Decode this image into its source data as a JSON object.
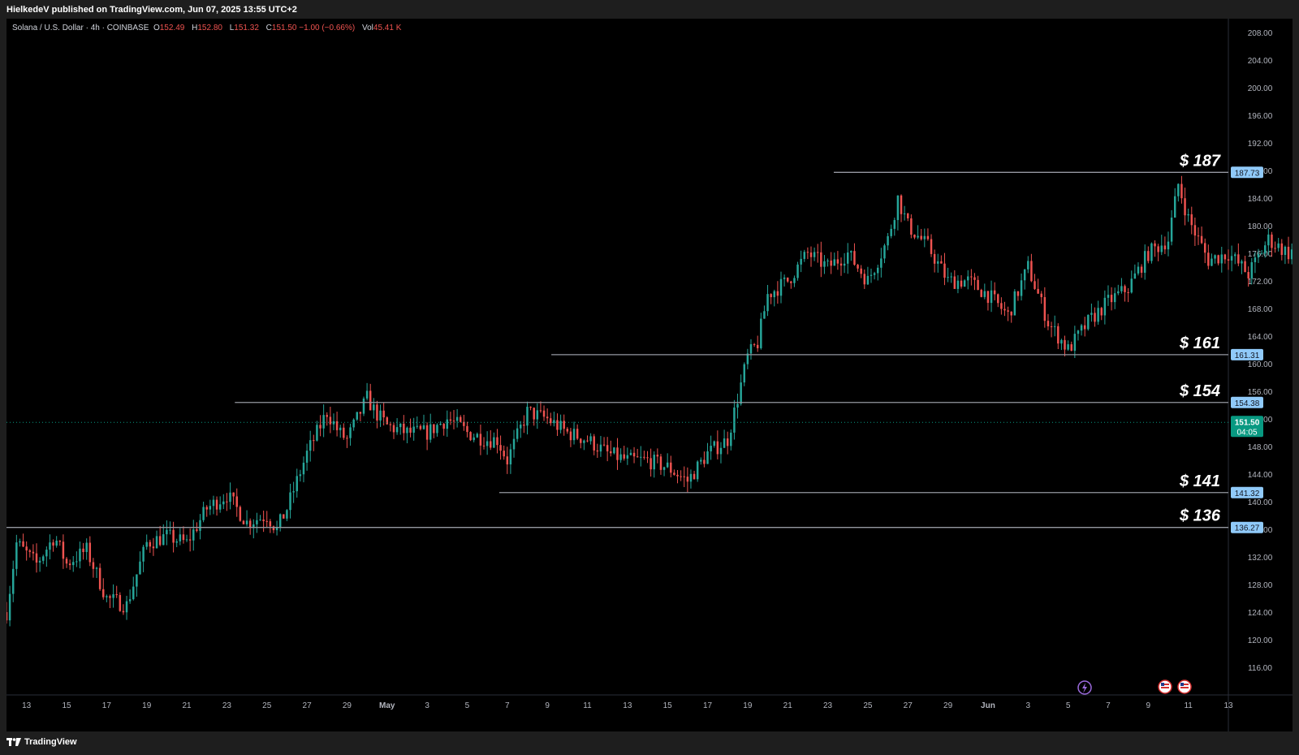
{
  "publisher_line": "HielkedeV published on TradingView.com, Jun 07, 2025 13:55 UTC+2",
  "legend": {
    "symbol": "Solana / U.S. Dollar · 4h · COINBASE",
    "o_label": "O",
    "o_value": "152.49",
    "h_label": "H",
    "h_value": "152.80",
    "l_label": "L",
    "l_value": "151.32",
    "c_label": "C",
    "c_value": "151.50 −1.00 (−0.66%)",
    "vol_label": "Vol",
    "vol_value": "45.41 K"
  },
  "footer": {
    "brand": "TradingView"
  },
  "colors": {
    "up": "#26a69a",
    "down": "#ef5350",
    "level_line": "#9598a1",
    "level_tag": "#90caf9",
    "price_tag": "#089981"
  },
  "chart_data": {
    "type": "line",
    "title": "",
    "ylim": [
      112,
      210
    ],
    "y_ticks": [
      "116.00",
      "120.00",
      "124.00",
      "128.00",
      "132.00",
      "136.00",
      "140.00",
      "144.00",
      "148.00",
      "152.00",
      "156.00",
      "160.00",
      "164.00",
      "168.00",
      "172.00",
      "176.00",
      "180.00",
      "184.00",
      "188.00",
      "192.00",
      "196.00",
      "200.00",
      "204.00",
      "208.00"
    ],
    "x_ticks": [
      "13",
      "15",
      "17",
      "19",
      "21",
      "23",
      "25",
      "27",
      "29",
      "May",
      "3",
      "5",
      "7",
      "9",
      "11",
      "13",
      "15",
      "17",
      "19",
      "21",
      "23",
      "25",
      "27",
      "29",
      "Jun",
      "3",
      "5",
      "7",
      "9",
      "11",
      "13"
    ],
    "x_start_day": -18,
    "x_end_day": 43,
    "price_path": [
      [
        -18,
        124
      ],
      [
        -17.5,
        134
      ],
      [
        -16.5,
        131
      ],
      [
        -15.6,
        135
      ],
      [
        -15,
        131
      ],
      [
        -14,
        133
      ],
      [
        -13,
        126
      ],
      [
        -12,
        125
      ],
      [
        -11,
        134
      ],
      [
        -10,
        135
      ],
      [
        -9,
        134
      ],
      [
        -8,
        139
      ],
      [
        -7,
        141
      ],
      [
        -6,
        137
      ],
      [
        -5,
        138
      ],
      [
        -4.5,
        136
      ],
      [
        -4,
        139
      ],
      [
        -3,
        147
      ],
      [
        -2,
        153
      ],
      [
        -1.4,
        150
      ],
      [
        -1,
        149
      ],
      [
        -0.5,
        152
      ],
      [
        0,
        155
      ],
      [
        0.4,
        153
      ],
      [
        1,
        151
      ],
      [
        2,
        150
      ],
      [
        3,
        150
      ],
      [
        4,
        152
      ],
      [
        4.6,
        151
      ],
      [
        5,
        150
      ],
      [
        6,
        149
      ],
      [
        6.5,
        149
      ],
      [
        7,
        146
      ],
      [
        8,
        153
      ],
      [
        9,
        152
      ],
      [
        10,
        150
      ],
      [
        11,
        149
      ],
      [
        12,
        147
      ],
      [
        13,
        146
      ],
      [
        14,
        146
      ],
      [
        15,
        145
      ],
      [
        15.5,
        144
      ],
      [
        16,
        143
      ],
      [
        17,
        147
      ],
      [
        18,
        149
      ],
      [
        18.5,
        155
      ],
      [
        19,
        161
      ],
      [
        19.5,
        163
      ],
      [
        20,
        170
      ],
      [
        21,
        172
      ],
      [
        22,
        176
      ],
      [
        23,
        174
      ],
      [
        24,
        176
      ],
      [
        25,
        172
      ],
      [
        26,
        178
      ],
      [
        26.5,
        184
      ],
      [
        27,
        180
      ],
      [
        28,
        177
      ],
      [
        29,
        172
      ],
      [
        30,
        172
      ],
      [
        31,
        170
      ],
      [
        32,
        167
      ],
      [
        33,
        174
      ],
      [
        34,
        166
      ],
      [
        35,
        162
      ],
      [
        36,
        166
      ],
      [
        37,
        169
      ],
      [
        38,
        171
      ],
      [
        39,
        176
      ],
      [
        40,
        178
      ],
      [
        40.5,
        186
      ],
      [
        41,
        181
      ],
      [
        42,
        175
      ],
      [
        43,
        176
      ],
      [
        44,
        173
      ],
      [
        45,
        178
      ],
      [
        46,
        176
      ],
      [
        47,
        178
      ],
      [
        48,
        175
      ],
      [
        49,
        172
      ],
      [
        50,
        168
      ],
      [
        51,
        162
      ],
      [
        52,
        155
      ],
      [
        53,
        154
      ],
      [
        54,
        155
      ],
      [
        55,
        153
      ],
      [
        56,
        153
      ],
      [
        56.5,
        160
      ],
      [
        57,
        162
      ],
      [
        57.5,
        156
      ],
      [
        58,
        154
      ],
      [
        59,
        154
      ],
      [
        60,
        150
      ],
      [
        60.5,
        146
      ],
      [
        61,
        147
      ],
      [
        62,
        150
      ],
      [
        63,
        151
      ]
    ],
    "series": [
      {
        "name": "",
        "type": "candles",
        "interval_hours": 4
      }
    ],
    "levels": [
      {
        "label": "$ 187",
        "value": 187.73,
        "tag": "187.73",
        "start_day": 23.3
      },
      {
        "label": "$ 161",
        "value": 161.31,
        "tag": "161.31",
        "start_day": 9.2
      },
      {
        "label": "$ 154",
        "value": 154.38,
        "tag": "154.38",
        "start_day": -6.6
      },
      {
        "label": "$ 141",
        "value": 141.32,
        "tag": "141.32",
        "start_day": 6.6
      },
      {
        "label": "$ 136",
        "value": 136.27,
        "tag": "136.27",
        "start_day": -18
      }
    ],
    "last_price": {
      "value": 151.5,
      "tag": "151.50",
      "countdown": "04:05"
    },
    "grid": false,
    "legend_position": "top-left"
  }
}
